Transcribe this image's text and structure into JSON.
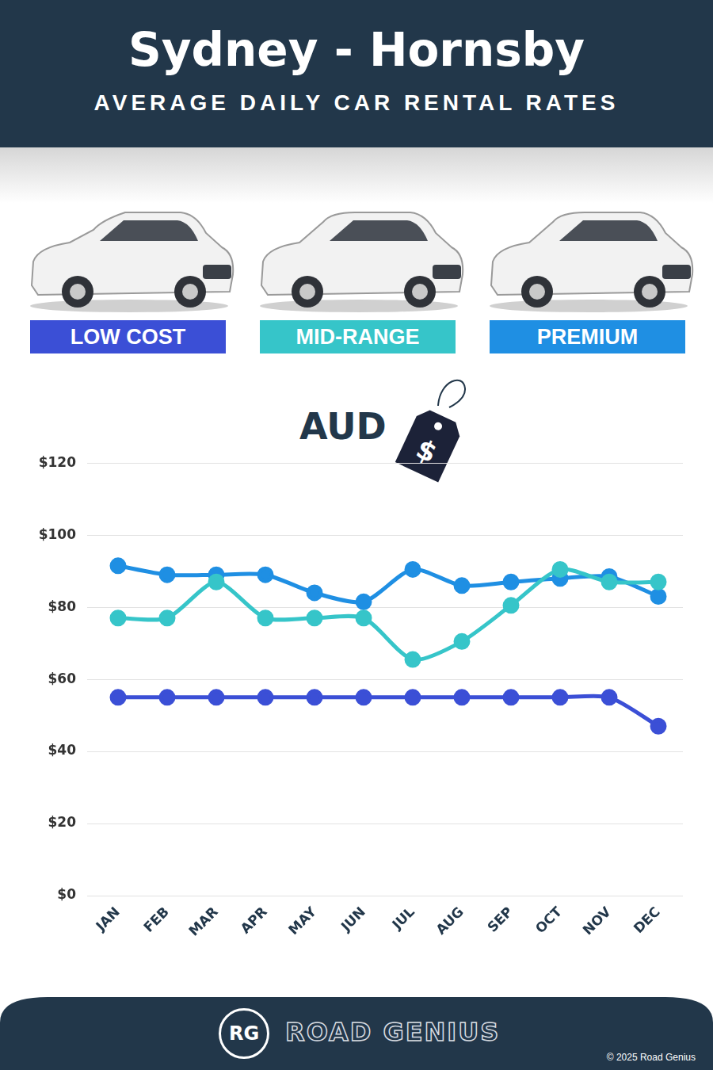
{
  "chart_data": {
    "type": "line",
    "title": "Sydney - Hornsby",
    "subtitle": "AVERAGE DAILY CAR RENTAL RATES",
    "ylabel": "AUD",
    "categories": [
      "JAN",
      "FEB",
      "MAR",
      "APR",
      "MAY",
      "JUN",
      "JUL",
      "AUG",
      "SEP",
      "OCT",
      "NOV",
      "DEC"
    ],
    "series": [
      {
        "name": "LOW COST",
        "color": "#3b4fd6",
        "values": [
          55,
          55,
          55,
          55,
          55,
          55,
          55,
          55,
          55,
          55,
          55,
          47
        ]
      },
      {
        "name": "MID-RANGE",
        "color": "#36c5c9",
        "values": [
          77,
          77,
          87,
          77,
          77,
          77,
          65.5,
          70.5,
          80.5,
          90.5,
          87,
          87
        ]
      },
      {
        "name": "PREMIUM",
        "color": "#1f8fe3",
        "values": [
          91.5,
          89,
          89,
          89,
          84,
          81.5,
          90.5,
          86,
          87,
          88,
          88.5,
          83
        ]
      }
    ],
    "ylim": [
      0,
      120
    ],
    "yticks": [
      {
        "value": 0,
        "label": "$0"
      },
      {
        "value": 20,
        "label": "$20"
      },
      {
        "value": 40,
        "label": "$40"
      },
      {
        "value": 60,
        "label": "$60"
      },
      {
        "value": 80,
        "label": "$80"
      },
      {
        "value": 100,
        "label": "$100"
      },
      {
        "value": 120,
        "label": "$120"
      }
    ],
    "grid": true,
    "marker": "circle",
    "line_style": "solid"
  },
  "price_tag": "$",
  "footer": {
    "logo": "RG",
    "brand": "ROAD GENIUS",
    "copyright": "© 2025 Road Genius"
  }
}
